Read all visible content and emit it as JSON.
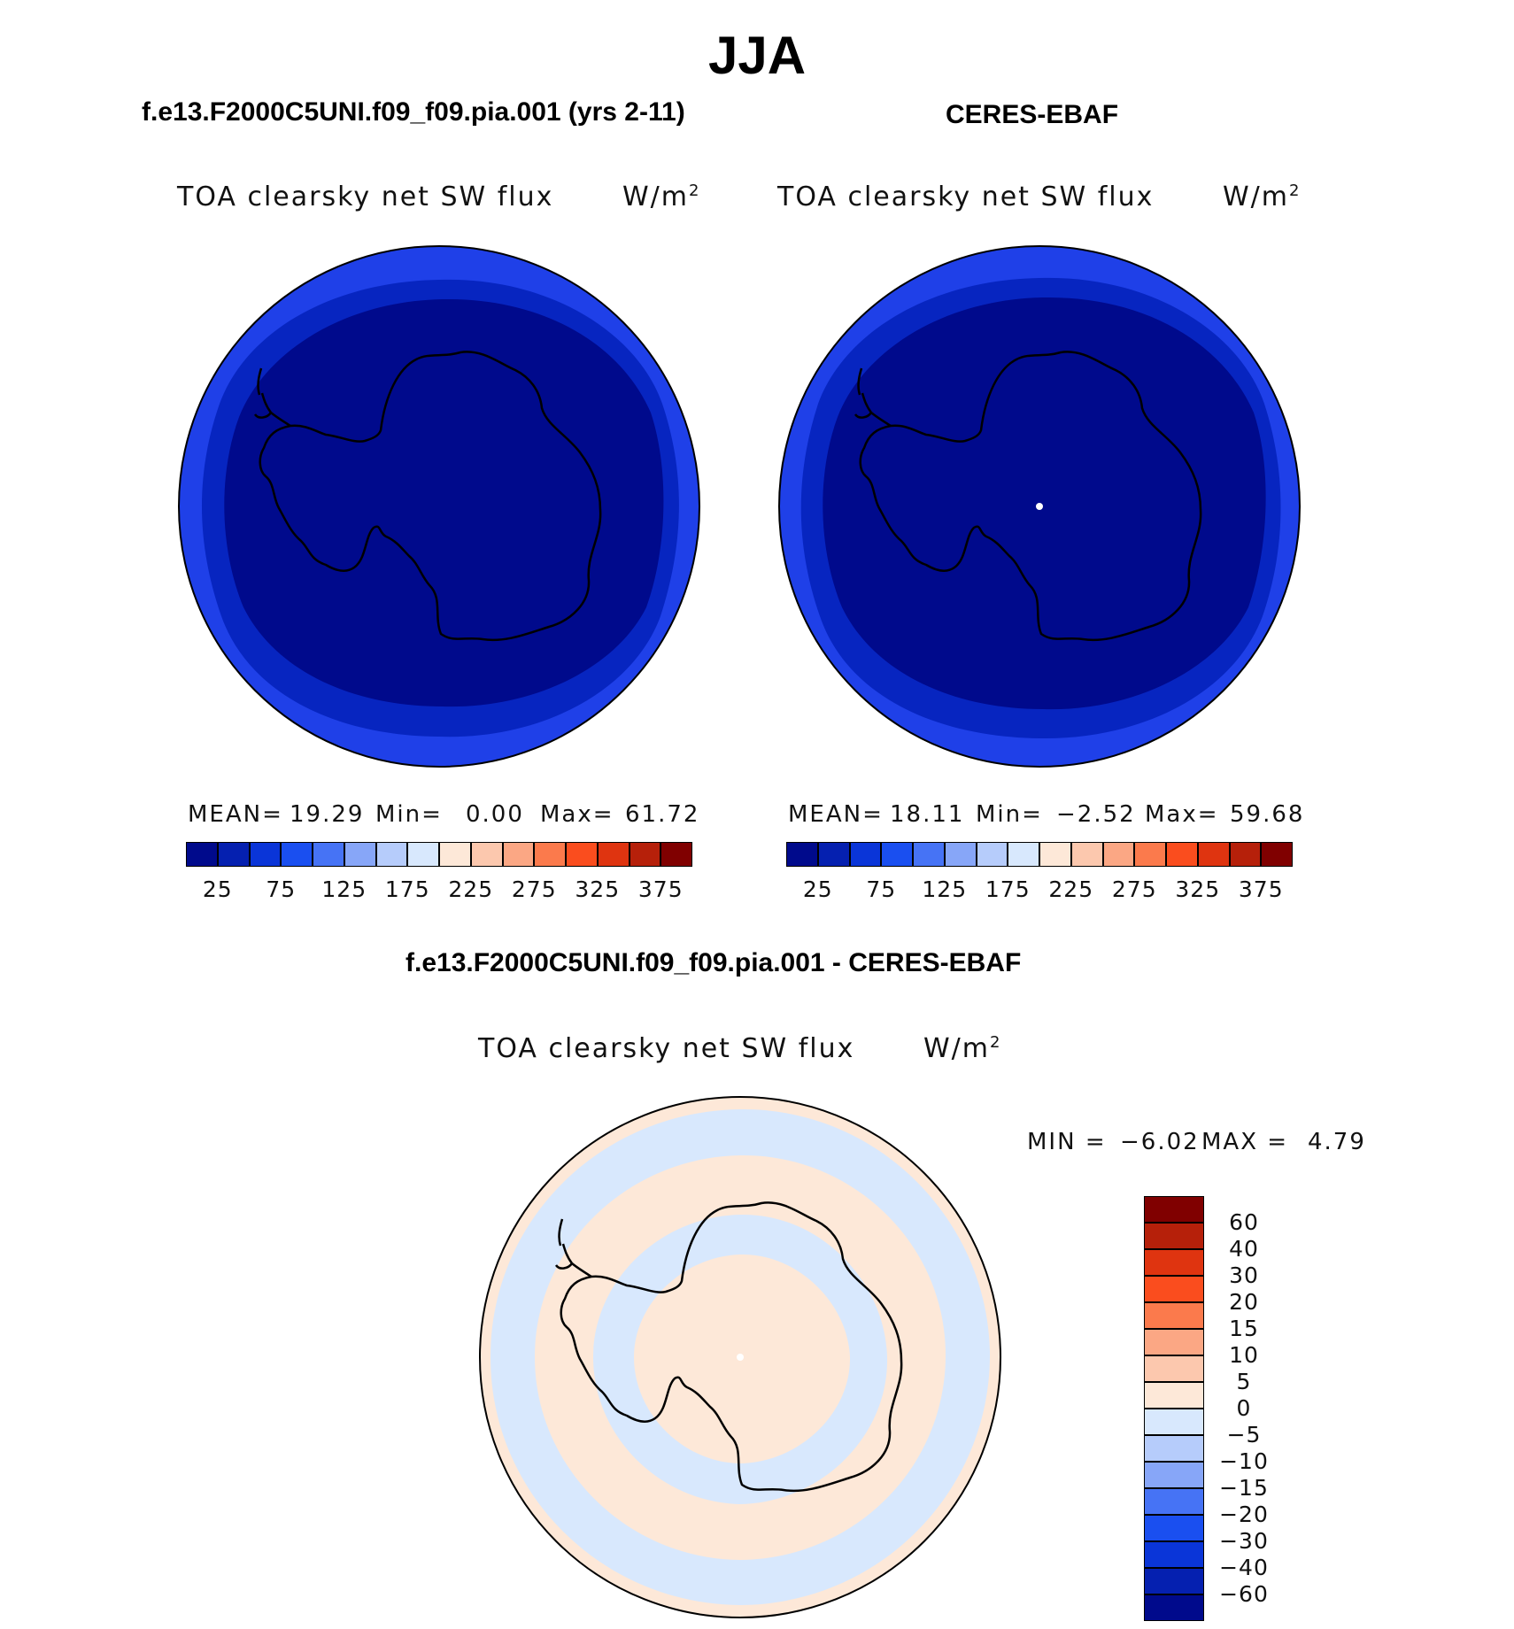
{
  "title": "JJA",
  "panels": [
    {
      "id": "model",
      "case_title": "f.e13.F2000C5UNI.f09_f09.pia.001 (yrs 2-11)",
      "variable": "TOA clearsky net SW flux",
      "units_base": "W/m",
      "units_exp": "2",
      "stats": {
        "mean_label": "MEAN=",
        "mean_value": "19.29",
        "min_label": "Min=",
        "min_value": "0.00",
        "max_label": "Max=",
        "max_value": "61.72"
      },
      "map_fill": {
        "outer": "#1f40e8",
        "middle": "#0725c0",
        "inner": "#000a8c"
      },
      "show_pole_marker": false
    },
    {
      "id": "obs",
      "case_title": "CERES-EBAF",
      "variable": "TOA clearsky net SW flux",
      "units_base": "W/m",
      "units_exp": "2",
      "stats": {
        "mean_label": "MEAN=",
        "mean_value": "18.11",
        "min_label": "Min=",
        "min_value": "−2.52",
        "max_label": "Max=",
        "max_value": "59.68"
      },
      "map_fill": {
        "outer": "#1f40e8",
        "middle": "#0725c0",
        "inner": "#000a8c"
      },
      "show_pole_marker": true
    }
  ],
  "colorbar_horizontal": {
    "colors": [
      "#000a8c",
      "#0520b0",
      "#0a35d8",
      "#1a4ff0",
      "#4673f5",
      "#87a6f8",
      "#b6ccfb",
      "#d8e8fd",
      "#fde8d8",
      "#fcc8ae",
      "#fba784",
      "#fb7a4c",
      "#fa4d1e",
      "#df3410",
      "#b6200a",
      "#800000"
    ],
    "labels": [
      "25",
      "75",
      "125",
      "175",
      "225",
      "275",
      "325",
      "375"
    ]
  },
  "difference": {
    "title": "f.e13.F2000C5UNI.f09_f09.pia.001 - CERES-EBAF",
    "variable": "TOA clearsky net SW flux",
    "units_base": "W/m",
    "units_exp": "2",
    "min_label": "MIN =",
    "min_value": "−6.02",
    "max_label": "MAX =",
    "max_value": "4.79",
    "map_fill": {
      "positive": "#fde8d8",
      "negative": "#d8e8fd"
    },
    "colorbar": {
      "colors_top_to_bottom": [
        "#800000",
        "#b6200a",
        "#df3410",
        "#fa4d1e",
        "#fb7a4c",
        "#fba784",
        "#fcc8ae",
        "#fde8d8",
        "#d8e8fd",
        "#b6ccfb",
        "#87a6f8",
        "#4673f5",
        "#1a4ff0",
        "#0a35d8",
        "#0520b0",
        "#000a8c"
      ],
      "labels_top_to_bottom": [
        "60",
        "40",
        "30",
        "20",
        "15",
        "10",
        "5",
        "0",
        "−5",
        "−10",
        "−15",
        "−20",
        "−30",
        "−40",
        "−60"
      ]
    }
  }
}
